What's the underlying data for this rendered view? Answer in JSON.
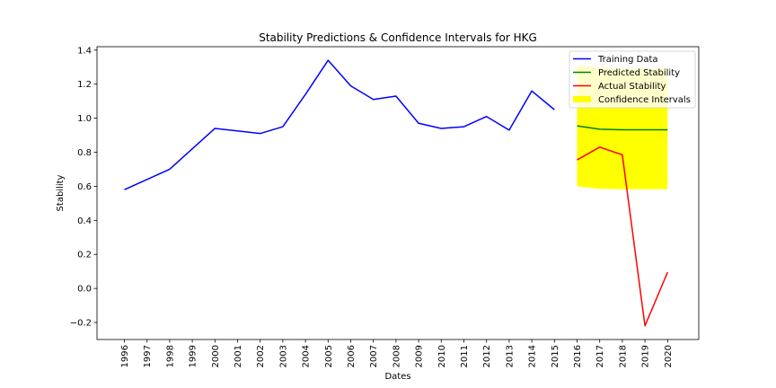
{
  "chart_data": {
    "type": "line",
    "title": "Stability Predictions & Confidence Intervals for HKG",
    "xlabel": "Dates",
    "ylabel": "Stability",
    "ylim": [
      -0.3,
      1.42
    ],
    "grid": false,
    "legend_position": "top-right",
    "categories": [
      "1996",
      "1997",
      "1998",
      "1999",
      "2000",
      "2001",
      "2002",
      "2003",
      "2004",
      "2005",
      "2006",
      "2007",
      "2008",
      "2009",
      "2010",
      "2011",
      "2012",
      "2013",
      "2014",
      "2015",
      "2016",
      "2017",
      "2018",
      "2019",
      "2020"
    ],
    "y_ticks": [
      "1.4",
      "1.2",
      "1.0",
      "0.8",
      "0.6",
      "0.4",
      "0.2",
      "0.0",
      "−0.2"
    ],
    "y_tick_values": [
      1.4,
      1.2,
      1.0,
      0.8,
      0.6,
      0.4,
      0.2,
      0.0,
      -0.2
    ],
    "series": [
      {
        "name": "Training Data",
        "color": "#0000ff",
        "points": [
          [
            "1996",
            0.58
          ],
          [
            "1998",
            0.7
          ],
          [
            "2000",
            0.94
          ],
          [
            "2002",
            0.91
          ],
          [
            "2003",
            0.95
          ],
          [
            "2004",
            1.14
          ],
          [
            "2005",
            1.34
          ],
          [
            "2006",
            1.19
          ],
          [
            "2007",
            1.11
          ],
          [
            "2008",
            1.13
          ],
          [
            "2009",
            0.97
          ],
          [
            "2010",
            0.94
          ],
          [
            "2011",
            0.95
          ],
          [
            "2012",
            1.01
          ],
          [
            "2013",
            0.93
          ],
          [
            "2014",
            1.16
          ],
          [
            "2015",
            1.05
          ]
        ]
      },
      {
        "name": "Predicted Stability",
        "color": "#008000",
        "points": [
          [
            "2016",
            0.955
          ],
          [
            "2017",
            0.935
          ],
          [
            "2018",
            0.932
          ],
          [
            "2019",
            0.932
          ],
          [
            "2020",
            0.932
          ]
        ]
      },
      {
        "name": "Actual Stability",
        "color": "#ff0000",
        "points": [
          [
            "2016",
            0.755
          ],
          [
            "2017",
            0.83
          ],
          [
            "2018",
            0.785
          ],
          [
            "2019",
            -0.22
          ],
          [
            "2020",
            0.095
          ]
        ]
      }
    ],
    "confidence_interval": {
      "name": "Confidence Intervals",
      "color": "#ffff00",
      "x": [
        "2016",
        "2017",
        "2018",
        "2019",
        "2020"
      ],
      "lower": [
        0.6,
        0.585,
        0.583,
        0.583,
        0.583
      ],
      "upper": [
        1.31,
        1.3,
        1.29,
        1.29,
        1.29
      ]
    }
  }
}
